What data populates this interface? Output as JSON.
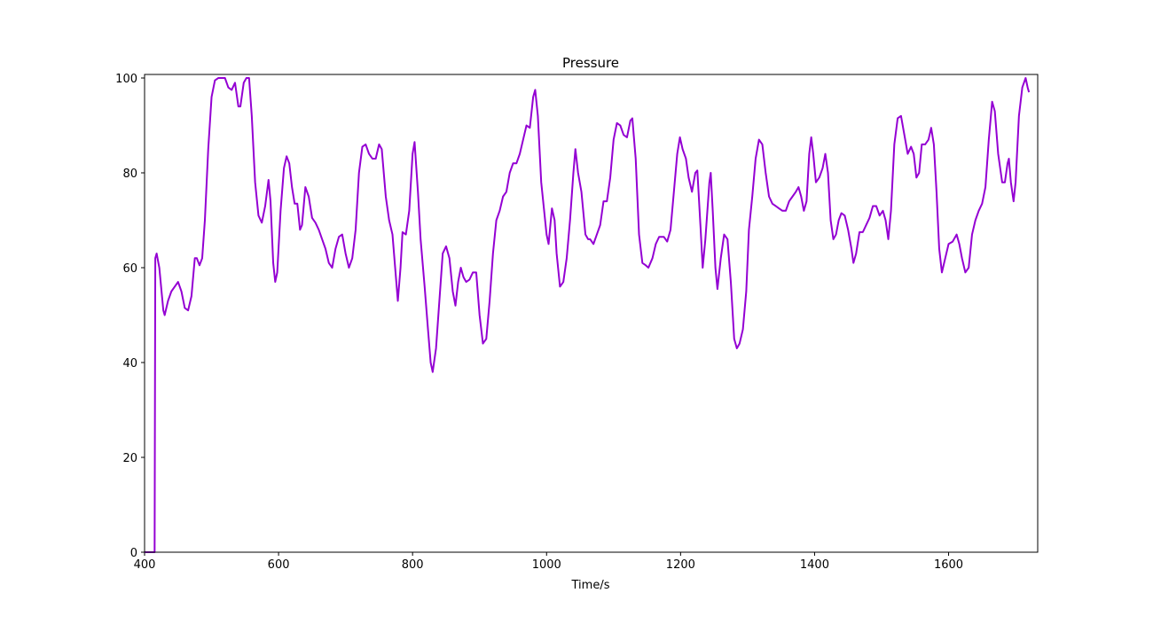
{
  "chart_data": {
    "type": "line",
    "title": "Pressure",
    "x_label": "Time/s",
    "xlim": [
      400,
      1733
    ],
    "ylim": [
      0,
      100.75
    ],
    "xticks": [
      400,
      600,
      800,
      1000,
      1200,
      1400,
      1600
    ],
    "yticks": [
      0,
      20,
      40,
      60,
      80,
      100
    ],
    "series": [
      {
        "color": "#9400d3",
        "x": [
          400,
          415,
          416,
          418,
          422,
          428,
          430,
          435,
          440,
          445,
          450,
          455,
          460,
          465,
          470,
          475,
          478,
          482,
          486,
          490,
          495,
          500,
          505,
          510,
          520,
          525,
          530,
          535,
          540,
          543,
          548,
          552,
          556,
          560,
          565,
          570,
          575,
          580,
          585,
          588,
          592,
          595,
          598,
          603,
          608,
          612,
          616,
          620,
          624,
          628,
          632,
          635,
          640,
          645,
          650,
          655,
          660,
          665,
          670,
          675,
          680,
          685,
          690,
          695,
          700,
          705,
          710,
          715,
          720,
          725,
          730,
          735,
          740,
          745,
          750,
          754,
          760,
          765,
          770,
          774,
          778,
          782,
          785,
          790,
          795,
          800,
          803,
          808,
          812,
          818,
          823,
          827,
          830,
          835,
          840,
          845,
          850,
          855,
          860,
          864,
          868,
          872,
          876,
          880,
          885,
          890,
          895,
          900,
          905,
          910,
          915,
          920,
          925,
          930,
          935,
          940,
          945,
          950,
          955,
          960,
          965,
          970,
          975,
          980,
          983,
          987,
          992,
          1000,
          1003,
          1008,
          1012,
          1015,
          1020,
          1025,
          1030,
          1035,
          1040,
          1043,
          1047,
          1052,
          1058,
          1062,
          1065,
          1070,
          1075,
          1080,
          1085,
          1090,
          1095,
          1100,
          1105,
          1110,
          1115,
          1120,
          1125,
          1128,
          1133,
          1138,
          1143,
          1148,
          1152,
          1158,
          1163,
          1168,
          1175,
          1180,
          1185,
          1190,
          1195,
          1199,
          1203,
          1208,
          1212,
          1217,
          1222,
          1225,
          1230,
          1233,
          1237,
          1243,
          1245,
          1248,
          1252,
          1255,
          1260,
          1265,
          1270,
          1275,
          1280,
          1284,
          1288,
          1293,
          1298,
          1302,
          1307,
          1312,
          1317,
          1322,
          1327,
          1332,
          1337,
          1342,
          1347,
          1352,
          1357,
          1362,
          1367,
          1372,
          1376,
          1380,
          1384,
          1388,
          1392,
          1395,
          1398,
          1402,
          1407,
          1412,
          1416,
          1420,
          1424,
          1428,
          1432,
          1436,
          1440,
          1445,
          1450,
          1455,
          1458,
          1462,
          1467,
          1472,
          1477,
          1482,
          1487,
          1492,
          1497,
          1502,
          1506,
          1510,
          1514,
          1519,
          1524,
          1529,
          1534,
          1539,
          1544,
          1548,
          1552,
          1556,
          1560,
          1565,
          1570,
          1574,
          1578,
          1582,
          1586,
          1590,
          1595,
          1600,
          1606,
          1612,
          1616,
          1620,
          1625,
          1630,
          1635,
          1640,
          1645,
          1650,
          1655,
          1660,
          1665,
          1669,
          1674,
          1680,
          1684,
          1688,
          1690,
          1693,
          1697,
          1700,
          1705,
          1710,
          1715,
          1718,
          1720
        ],
        "values": [
          0,
          0,
          62,
          63,
          60,
          51,
          50,
          53,
          55,
          56,
          57,
          55,
          51.5,
          51,
          54,
          62,
          62,
          60.5,
          62,
          70,
          85,
          96,
          99.5,
          100,
          100,
          98,
          97.5,
          99,
          94,
          94,
          99,
          100,
          100,
          92,
          78,
          71,
          69.5,
          73,
          78.5,
          74,
          61,
          57,
          59,
          72,
          81,
          83.5,
          82,
          77,
          73.5,
          73.5,
          68,
          69,
          77,
          75,
          70.5,
          69.5,
          68,
          66,
          64,
          61,
          60,
          64,
          66.5,
          67,
          63,
          60,
          62,
          68,
          80,
          85.5,
          86,
          84,
          83,
          83,
          86,
          85,
          75,
          70,
          67,
          60,
          53,
          60,
          67.5,
          67,
          72,
          84,
          86.5,
          76,
          66,
          56,
          47,
          40,
          38,
          43,
          53,
          63,
          64.5,
          62,
          55,
          52,
          57,
          60,
          58,
          57,
          57.5,
          59,
          59,
          50,
          44,
          45,
          53,
          63,
          70,
          72,
          75,
          76,
          80,
          82,
          82,
          84,
          87,
          90,
          89.5,
          96,
          97.5,
          92,
          78,
          67,
          65,
          72.5,
          70,
          63,
          56,
          57,
          62,
          70,
          80,
          85,
          80,
          76,
          67,
          66,
          66,
          65,
          67,
          69,
          74,
          74,
          79,
          87,
          90.5,
          90,
          88,
          87.5,
          91,
          91.5,
          83,
          67,
          61,
          60.5,
          60,
          62,
          65,
          66.5,
          66.5,
          65.5,
          68,
          76,
          84,
          87.5,
          85,
          83,
          79,
          76,
          80,
          80.5,
          68,
          60,
          66,
          78,
          80,
          72,
          60,
          55.5,
          62,
          67,
          66,
          57,
          45,
          43,
          44,
          47,
          55,
          68,
          75,
          83,
          87,
          86,
          80,
          75,
          73.5,
          73,
          72.5,
          72,
          72,
          74,
          75,
          76,
          77,
          75,
          72,
          74,
          84,
          87.5,
          84,
          78,
          79,
          81,
          84,
          80,
          70,
          66,
          67,
          70,
          71.5,
          71,
          68,
          64,
          61,
          63,
          67.5,
          67.5,
          69,
          70.5,
          73,
          73,
          71,
          72,
          70,
          66,
          72,
          86,
          91.5,
          92,
          88,
          84,
          85.5,
          84,
          79,
          80,
          86,
          86,
          87,
          89.5,
          86,
          76,
          64,
          59,
          62,
          65,
          65.5,
          67,
          65,
          62,
          59,
          60,
          67,
          70,
          72,
          73.5,
          77,
          87,
          95,
          93,
          84,
          78,
          78,
          82,
          83,
          78,
          74,
          78,
          92,
          98,
          100,
          98,
          97
        ]
      }
    ]
  }
}
